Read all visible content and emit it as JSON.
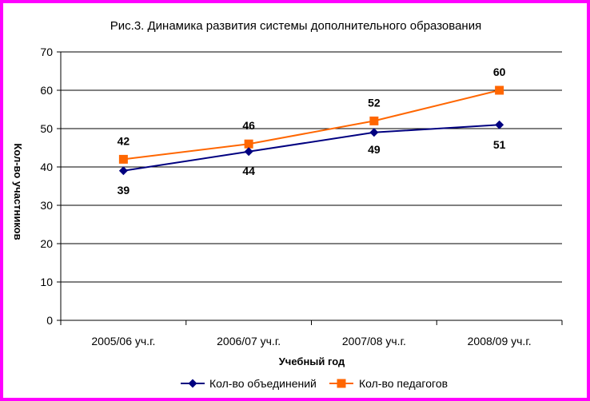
{
  "chart_data": {
    "type": "line",
    "title": "Рис.3.  Динамика развития системы дополнительного образования",
    "xlabel": "Учебный год",
    "ylabel": "Кол-во участников",
    "ylim": [
      0,
      70
    ],
    "yticks": [
      "0",
      "10",
      "20",
      "30",
      "40",
      "50",
      "60",
      "70"
    ],
    "grid": true,
    "legend_position": "bottom",
    "categories": [
      "2005/06 уч.г.",
      "2006/07 уч.г.",
      "2007/08 уч.г.",
      "2008/09 уч.г."
    ],
    "series": [
      {
        "name": "Кол-во объединений",
        "values": [
          39,
          44,
          49,
          51
        ],
        "labels": [
          "39",
          "44",
          "49",
          "51"
        ],
        "color": "#000080",
        "marker": "diamond"
      },
      {
        "name": "Кол-во педагогов",
        "values": [
          42,
          46,
          52,
          60
        ],
        "labels": [
          "42",
          "46",
          "52",
          "60"
        ],
        "color": "#ff6600",
        "marker": "square"
      }
    ]
  },
  "colors": {
    "frame": "#ff00ff",
    "grid": "#000000"
  }
}
